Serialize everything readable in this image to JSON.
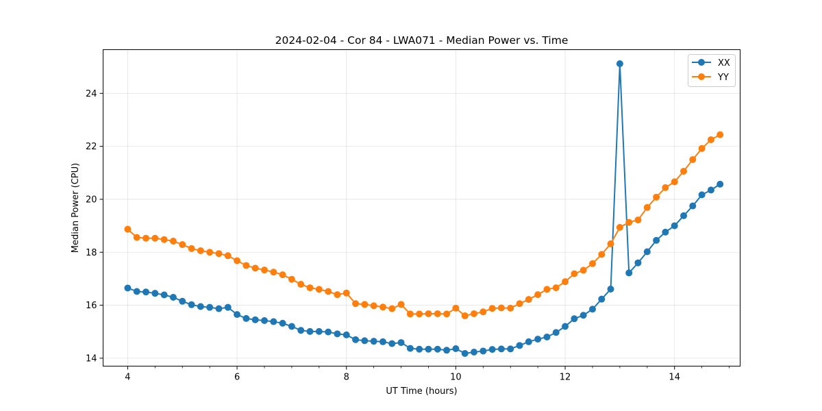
{
  "chart_data": {
    "type": "line",
    "title": "2024-02-04 - Cor 84 - LWA071 - Median Power vs. Time",
    "xlabel": "UT Time (hours)",
    "ylabel": "Median Power (CPU)",
    "xlim": [
      3.55,
      15.2
    ],
    "ylim": [
      13.7,
      25.65
    ],
    "xticks": [
      4,
      6,
      8,
      10,
      12,
      14
    ],
    "xtick_labels": [
      "4",
      "6",
      "8",
      "10",
      "12",
      "14"
    ],
    "yticks": [
      14,
      16,
      18,
      20,
      22,
      24
    ],
    "ytick_labels": [
      "14",
      "16",
      "18",
      "20",
      "22",
      "24"
    ],
    "grid": true,
    "legend_position": "top-right",
    "x": [
      4.0,
      4.167,
      4.333,
      4.5,
      4.667,
      4.833,
      5.0,
      5.167,
      5.333,
      5.5,
      5.667,
      5.833,
      6.0,
      6.167,
      6.333,
      6.5,
      6.667,
      6.833,
      7.0,
      7.167,
      7.333,
      7.5,
      7.667,
      7.833,
      8.0,
      8.167,
      8.333,
      8.5,
      8.667,
      8.833,
      9.0,
      9.167,
      9.333,
      9.5,
      9.667,
      9.833,
      10.0,
      10.167,
      10.333,
      10.5,
      10.667,
      10.833,
      11.0,
      11.167,
      11.333,
      11.5,
      11.667,
      11.833,
      12.0,
      12.167,
      12.333,
      12.5,
      12.667,
      12.833,
      13.0,
      13.167,
      13.333,
      13.5,
      13.667,
      13.833,
      14.0,
      14.167,
      14.333,
      14.5,
      14.667,
      14.833
    ],
    "series": [
      {
        "name": "XX",
        "color": "#1f77b4",
        "values": [
          16.65,
          16.52,
          16.5,
          16.45,
          16.39,
          16.3,
          16.15,
          16.02,
          15.95,
          15.92,
          15.87,
          15.92,
          15.65,
          15.5,
          15.45,
          15.42,
          15.38,
          15.32,
          15.2,
          15.05,
          15.01,
          15.01,
          14.99,
          14.92,
          14.88,
          14.7,
          14.66,
          14.64,
          14.62,
          14.55,
          14.59,
          14.37,
          14.34,
          14.34,
          14.34,
          14.3,
          14.36,
          14.18,
          14.23,
          14.27,
          14.33,
          14.35,
          14.35,
          14.48,
          14.62,
          14.72,
          14.8,
          14.97,
          15.2,
          15.49,
          15.62,
          15.85,
          16.23,
          16.61,
          25.12,
          17.22,
          17.6,
          18.02,
          18.45,
          18.76,
          19.0,
          19.38,
          19.75,
          20.17,
          20.35,
          20.57
        ]
      },
      {
        "name": "YY",
        "color": "#ff7f0e",
        "values": [
          18.87,
          18.56,
          18.53,
          18.53,
          18.48,
          18.42,
          18.29,
          18.14,
          18.06,
          18.0,
          17.95,
          17.87,
          17.68,
          17.5,
          17.4,
          17.33,
          17.25,
          17.15,
          16.98,
          16.79,
          16.66,
          16.6,
          16.52,
          16.4,
          16.46,
          16.06,
          16.03,
          15.98,
          15.93,
          15.87,
          16.03,
          15.67,
          15.67,
          15.68,
          15.68,
          15.67,
          15.89,
          15.6,
          15.68,
          15.75,
          15.88,
          15.9,
          15.89,
          16.06,
          16.22,
          16.4,
          16.6,
          16.66,
          16.89,
          17.19,
          17.32,
          17.57,
          17.92,
          18.32,
          18.94,
          19.13,
          19.22,
          19.69,
          20.08,
          20.44,
          20.66,
          21.06,
          21.5,
          21.92,
          22.25,
          22.44
        ]
      }
    ]
  }
}
